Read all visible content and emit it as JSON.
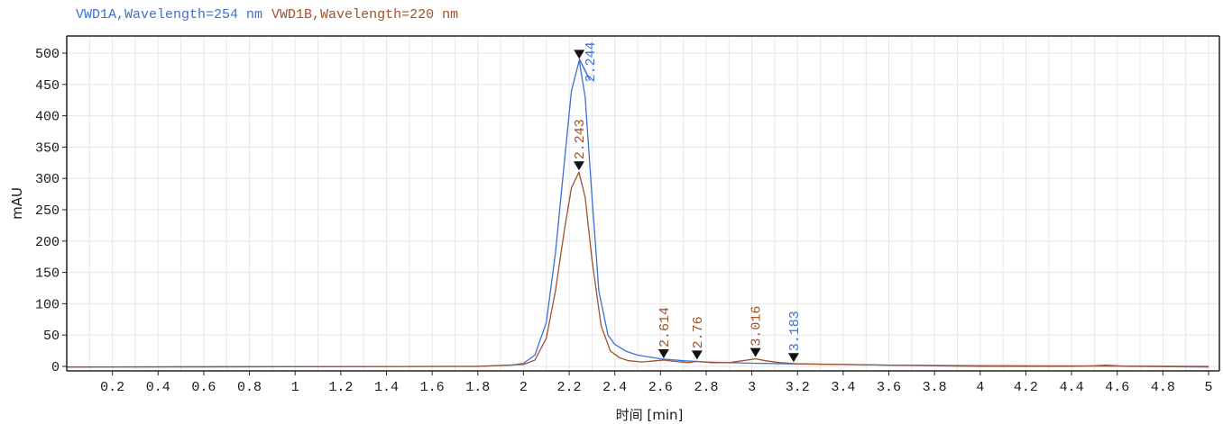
{
  "chart_data": {
    "type": "line",
    "xlabel": "时间 [min]",
    "ylabel": "mAU",
    "xlim": [
      0,
      5
    ],
    "ylim": [
      -10,
      525
    ],
    "xticks": [
      "0.2",
      "0.4",
      "0.6",
      "0.8",
      "1",
      "1.2",
      "1.4",
      "1.6",
      "1.8",
      "2",
      "2.2",
      "2.4",
      "2.6",
      "2.8",
      "3",
      "3.2",
      "3.4",
      "3.6",
      "3.8",
      "4",
      "4.2",
      "4.4",
      "4.6",
      "4.8",
      "5"
    ],
    "yticks": [
      0,
      50,
      100,
      150,
      200,
      250,
      300,
      350,
      400,
      450,
      500
    ],
    "grid": true,
    "legend_position": "top-left",
    "series": [
      {
        "name": "VWD1A,Wavelength=254 nm",
        "color": "#3d6fd6",
        "x": [
          0,
          1.8,
          1.95,
          2.0,
          2.05,
          2.1,
          2.14,
          2.18,
          2.21,
          2.244,
          2.27,
          2.3,
          2.33,
          2.37,
          2.4,
          2.45,
          2.5,
          2.6,
          2.7,
          2.8,
          3.0,
          3.18,
          3.4,
          3.6,
          3.8,
          4.0,
          4.4,
          4.5,
          4.55,
          4.65,
          5.0
        ],
        "y": [
          -1,
          0,
          2,
          5,
          18,
          70,
          180,
          330,
          440,
          488,
          430,
          270,
          120,
          50,
          35,
          24,
          18,
          12,
          9,
          7,
          5,
          4,
          3,
          2,
          1,
          0,
          0,
          1,
          2,
          0,
          -1
        ],
        "peaks": [
          {
            "x": 2.244,
            "y": 488,
            "label": "2.244"
          },
          {
            "x": 3.183,
            "y": 4,
            "label": "3.183"
          }
        ]
      },
      {
        "name": "VWD1B,Wavelength=220 nm",
        "color": "#a0522d",
        "x": [
          0,
          1.8,
          2.0,
          2.05,
          2.1,
          2.14,
          2.18,
          2.21,
          2.243,
          2.27,
          2.3,
          2.34,
          2.38,
          2.42,
          2.46,
          2.52,
          2.58,
          2.614,
          2.66,
          2.72,
          2.76,
          2.82,
          2.9,
          2.96,
          3.016,
          3.06,
          3.12,
          3.2,
          3.4,
          3.6,
          4.0,
          5.0
        ],
        "y": [
          -1,
          0,
          3,
          10,
          45,
          120,
          220,
          285,
          310,
          270,
          170,
          65,
          25,
          14,
          9,
          7,
          9,
          10,
          8,
          6,
          8,
          6,
          6,
          9,
          12,
          9,
          6,
          4,
          3,
          2,
          1,
          0
        ],
        "peaks": [
          {
            "x": 2.243,
            "y": 310,
            "label": "2.243"
          },
          {
            "x": 2.614,
            "y": 10,
            "label": "2.614"
          },
          {
            "x": 2.76,
            "y": 8,
            "label": "2.76"
          },
          {
            "x": 3.016,
            "y": 12,
            "label": "3.016"
          }
        ]
      }
    ]
  }
}
